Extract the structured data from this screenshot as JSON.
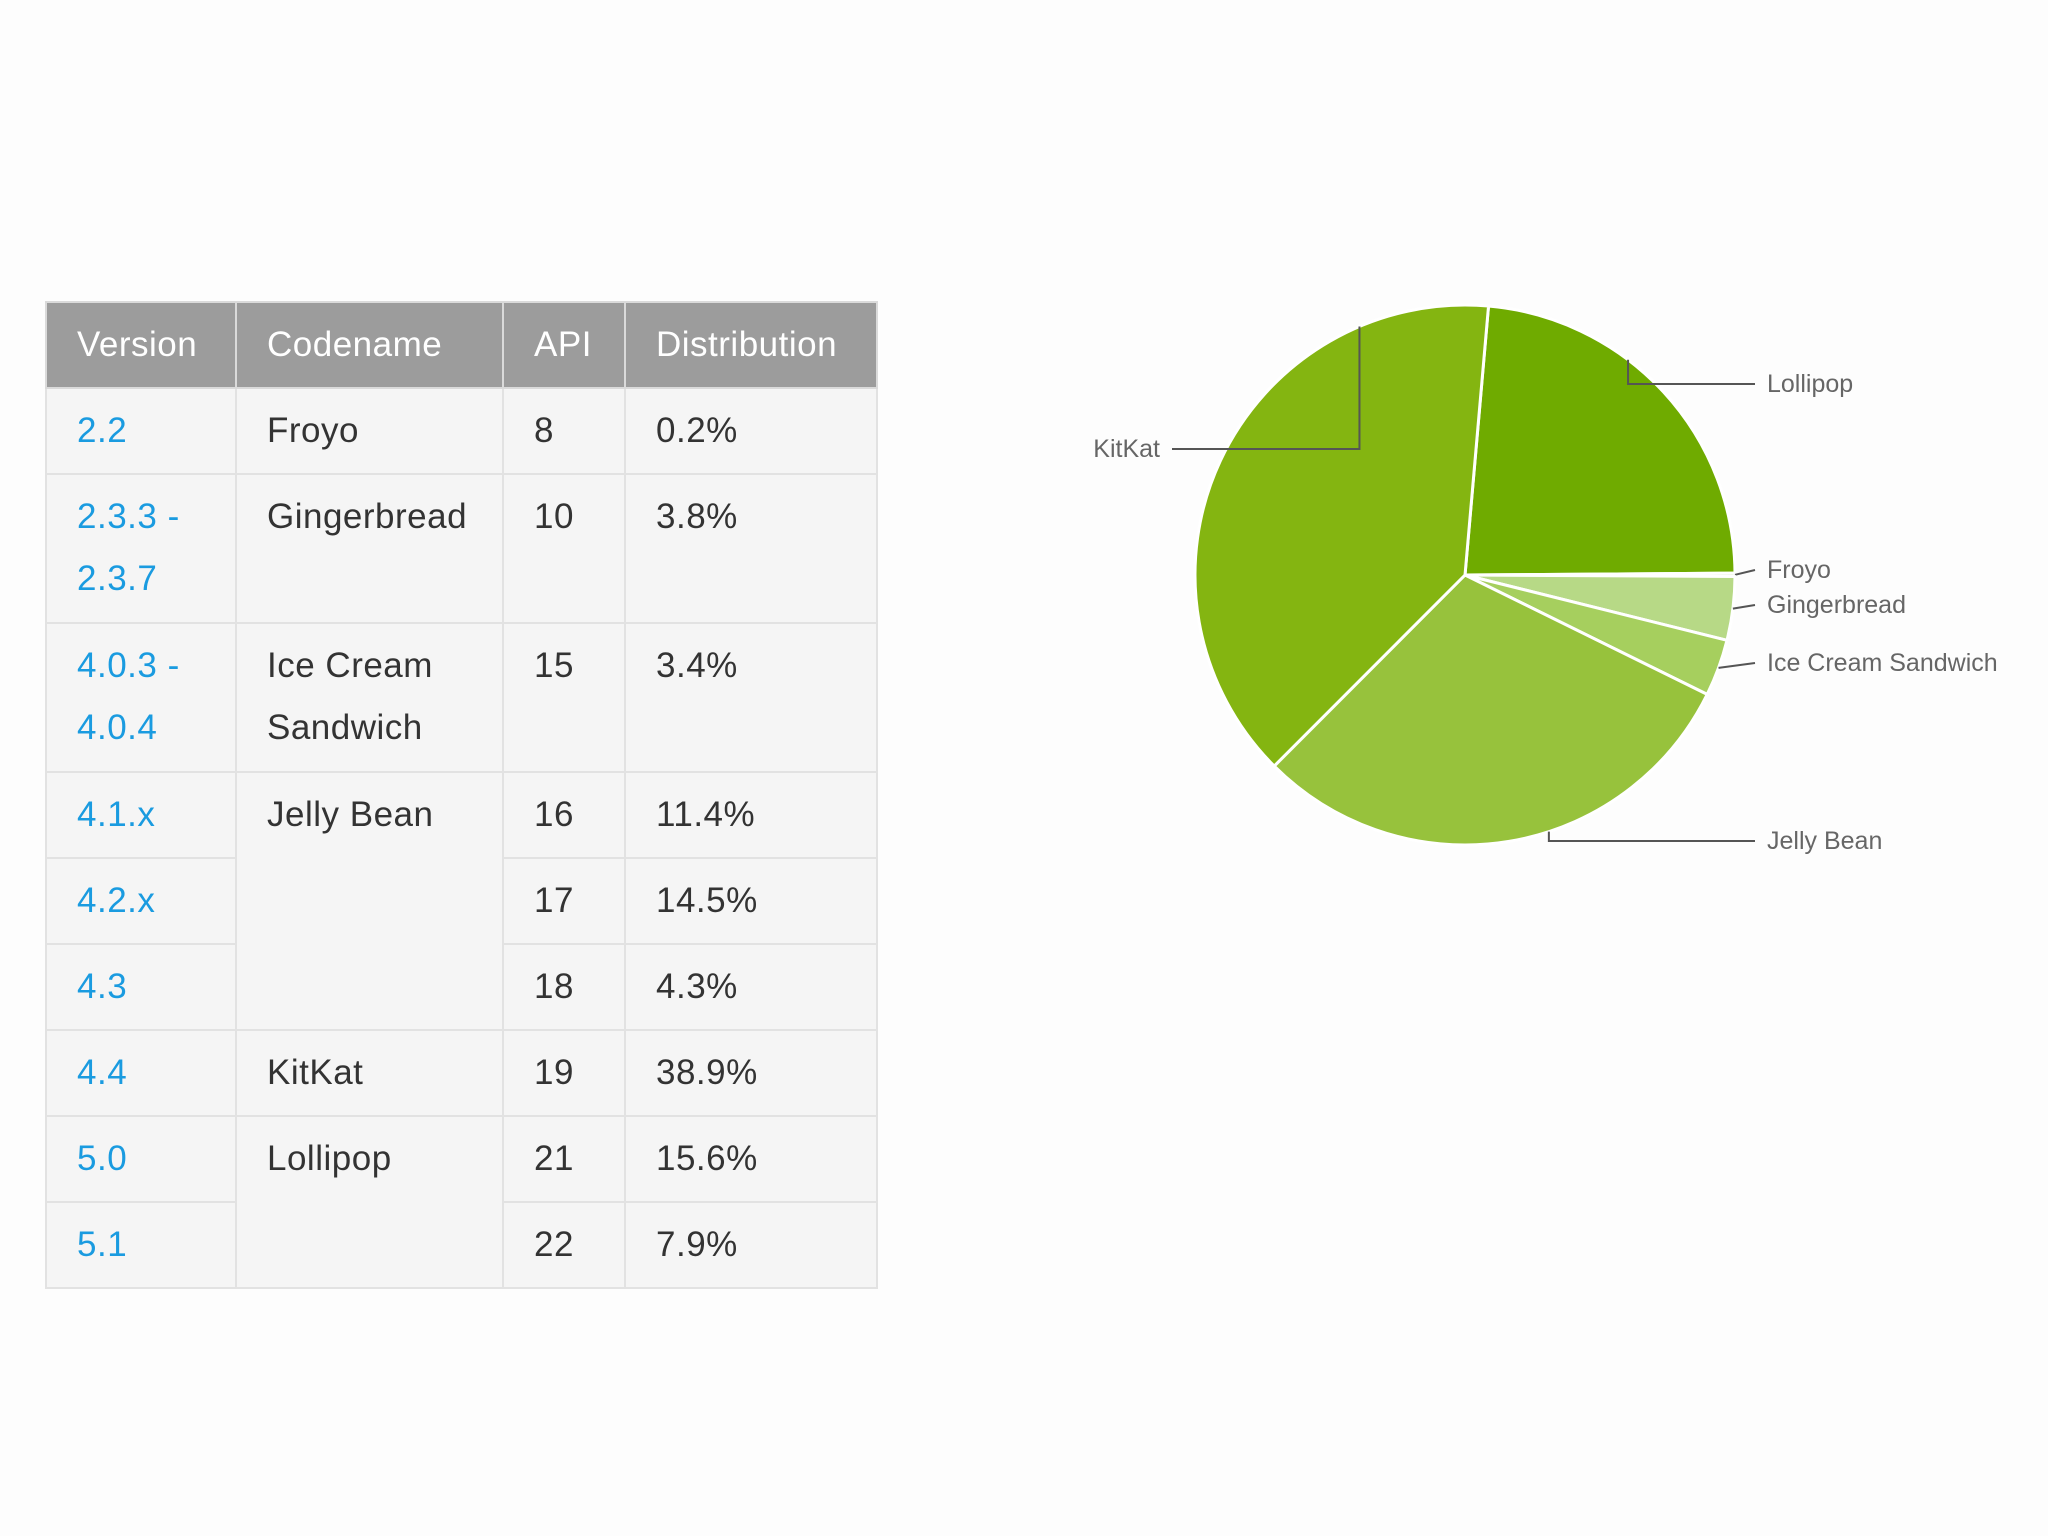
{
  "table": {
    "headers": [
      "Version",
      "Codename",
      "API",
      "Distribution"
    ],
    "rows": [
      {
        "version": "2.2",
        "codename": "Froyo",
        "api": "8",
        "distribution": "0.2%"
      },
      {
        "version": "2.3.3 - 2.3.7",
        "codename": "Gingerbread",
        "api": "10",
        "distribution": "3.8%"
      },
      {
        "version": "4.0.3 - 4.0.4",
        "codename": "Ice Cream Sandwich",
        "api": "15",
        "distribution": "3.4%"
      },
      {
        "version": "4.1.x",
        "codename": "Jelly Bean",
        "api": "16",
        "distribution": "11.4%"
      },
      {
        "version": "4.2.x",
        "codename": "Jelly Bean",
        "api": "17",
        "distribution": "14.5%"
      },
      {
        "version": "4.3",
        "codename": "Jelly Bean",
        "api": "18",
        "distribution": "4.3%"
      },
      {
        "version": "4.4",
        "codename": "KitKat",
        "api": "19",
        "distribution": "38.9%"
      },
      {
        "version": "5.0",
        "codename": "Lollipop",
        "api": "21",
        "distribution": "15.6%"
      },
      {
        "version": "5.1",
        "codename": "Lollipop",
        "api": "22",
        "distribution": "7.9%"
      }
    ]
  },
  "colors": {
    "header_bg": "#9c9c9c",
    "cell_bg": "#f5f5f5",
    "version_link": "#1a9be0",
    "label_text": "#666666"
  },
  "chart_data": {
    "type": "pie",
    "title": "",
    "slices": [
      {
        "label": "Lollipop",
        "value": 23.5,
        "color": "#6fab00"
      },
      {
        "label": "Froyo",
        "value": 0.2,
        "color": "#c9e3a0"
      },
      {
        "label": "Gingerbread",
        "value": 3.8,
        "color": "#b7d986"
      },
      {
        "label": "Ice Cream Sandwich",
        "value": 3.4,
        "color": "#a6cf5e"
      },
      {
        "label": "Jelly Bean",
        "value": 30.2,
        "color": "#97c23c"
      },
      {
        "label": "KitKat",
        "value": 38.9,
        "color": "#84b511"
      }
    ],
    "start_angle_degrees": 5,
    "direction": "clockwise",
    "label_placement": "outside-with-leader-lines"
  }
}
